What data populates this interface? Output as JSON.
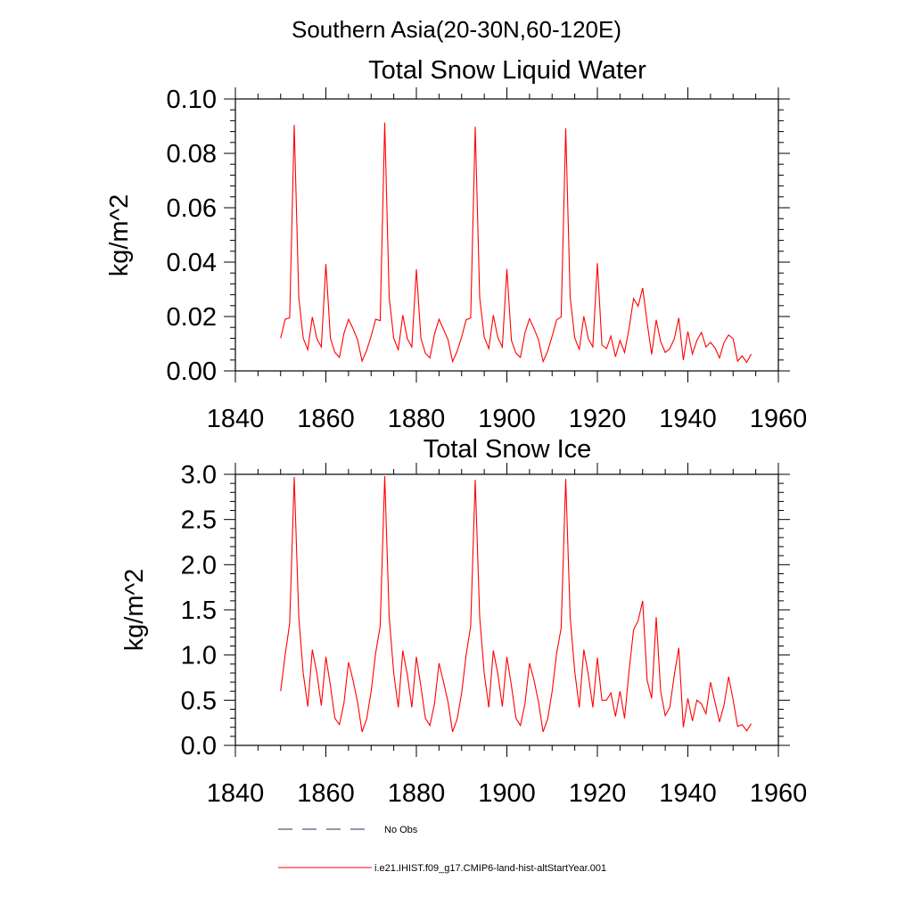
{
  "page_title": "Southern Asia(20-30N,60-120E)",
  "chart_data": [
    {
      "type": "line",
      "title": "Total Snow Liquid Water",
      "xlabel": "",
      "ylabel": "kg/m^2",
      "xlim": [
        1840,
        1960
      ],
      "ylim": [
        0,
        0.1
      ],
      "x_ticks": [
        "1840",
        "1860",
        "1880",
        "1900",
        "1920",
        "1940",
        "1960"
      ],
      "y_ticks": [
        "0.00",
        "0.02",
        "0.04",
        "0.06",
        "0.08",
        "0.10"
      ],
      "series": [
        {
          "color": "#ff0000",
          "x": [
            1850,
            1851,
            1852,
            1853,
            1854,
            1855,
            1856,
            1857,
            1858,
            1859,
            1860,
            1861,
            1862,
            1863,
            1864,
            1865,
            1866,
            1867,
            1868,
            1869,
            1870,
            1871,
            1872,
            1873,
            1874,
            1875,
            1876,
            1877,
            1878,
            1879,
            1880,
            1881,
            1882,
            1883,
            1884,
            1885,
            1886,
            1887,
            1888,
            1889,
            1890,
            1891,
            1892,
            1893,
            1894,
            1895,
            1896,
            1897,
            1898,
            1899,
            1900,
            1901,
            1902,
            1903,
            1904,
            1905,
            1906,
            1907,
            1908,
            1909,
            1910,
            1911,
            1912,
            1913,
            1914,
            1915,
            1916,
            1917,
            1918,
            1919,
            1920,
            1921,
            1922,
            1923,
            1924,
            1925,
            1926,
            1927,
            1928,
            1929,
            1930,
            1931,
            1932,
            1933,
            1934,
            1935,
            1936,
            1937,
            1938,
            1939,
            1940,
            1941,
            1942,
            1943,
            1944,
            1945,
            1946,
            1947,
            1948,
            1949,
            1950,
            1951,
            1952,
            1953,
            1954
          ],
          "y": [
            0.012,
            0.019,
            0.0195,
            0.0905,
            0.027,
            0.012,
            0.0078,
            0.0198,
            0.0118,
            0.0088,
            0.0393,
            0.012,
            0.0068,
            0.005,
            0.0138,
            0.019,
            0.0155,
            0.0115,
            0.0036,
            0.0075,
            0.0128,
            0.019,
            0.0185,
            0.0913,
            0.027,
            0.012,
            0.0078,
            0.0205,
            0.0118,
            0.0088,
            0.0373,
            0.012,
            0.0065,
            0.0048,
            0.0135,
            0.019,
            0.0152,
            0.0115,
            0.0034,
            0.0072,
            0.0125,
            0.0188,
            0.0195,
            0.0898,
            0.027,
            0.0125,
            0.0082,
            0.0205,
            0.0122,
            0.0088,
            0.0375,
            0.0112,
            0.0065,
            0.005,
            0.014,
            0.0192,
            0.0155,
            0.0115,
            0.0034,
            0.0072,
            0.0128,
            0.0188,
            0.0198,
            0.0892,
            0.027,
            0.0122,
            0.0078,
            0.0201,
            0.0118,
            0.0088,
            0.0396,
            0.0095,
            0.0082,
            0.0128,
            0.0052,
            0.0112,
            0.0068,
            0.0155,
            0.0266,
            0.0238,
            0.0305,
            0.0178,
            0.0061,
            0.0188,
            0.0108,
            0.0068,
            0.0082,
            0.0118,
            0.0195,
            0.004,
            0.0145,
            0.0062,
            0.0112,
            0.0142,
            0.0088,
            0.0105,
            0.0085,
            0.0048,
            0.0105,
            0.0132,
            0.0118,
            0.0036,
            0.0055,
            0.0031,
            0.0062
          ]
        }
      ]
    },
    {
      "type": "line",
      "title": "Total Snow Ice",
      "xlabel": "",
      "ylabel": "kg/m^2",
      "xlim": [
        1840,
        1960
      ],
      "ylim": [
        0,
        3.0
      ],
      "x_ticks": [
        "1840",
        "1860",
        "1880",
        "1900",
        "1920",
        "1940",
        "1960"
      ],
      "y_ticks": [
        "0.0",
        "0.5",
        "1.0",
        "1.5",
        "2.0",
        "2.5",
        "3.0"
      ],
      "series": [
        {
          "color": "#ff0000",
          "x": [
            1850,
            1851,
            1852,
            1853,
            1854,
            1855,
            1856,
            1857,
            1858,
            1859,
            1860,
            1861,
            1862,
            1863,
            1864,
            1865,
            1866,
            1867,
            1868,
            1869,
            1870,
            1871,
            1872,
            1873,
            1874,
            1875,
            1876,
            1877,
            1878,
            1879,
            1880,
            1881,
            1882,
            1883,
            1884,
            1885,
            1886,
            1887,
            1888,
            1889,
            1890,
            1891,
            1892,
            1893,
            1894,
            1895,
            1896,
            1897,
            1898,
            1899,
            1900,
            1901,
            1902,
            1903,
            1904,
            1905,
            1906,
            1907,
            1908,
            1909,
            1910,
            1911,
            1912,
            1913,
            1914,
            1915,
            1916,
            1917,
            1918,
            1919,
            1920,
            1921,
            1922,
            1923,
            1924,
            1925,
            1926,
            1927,
            1928,
            1929,
            1930,
            1931,
            1932,
            1933,
            1934,
            1935,
            1936,
            1937,
            1938,
            1939,
            1940,
            1941,
            1942,
            1943,
            1944,
            1945,
            1946,
            1947,
            1948,
            1949,
            1950,
            1951,
            1952,
            1953,
            1954
          ],
          "y": [
            0.6,
            1.0,
            1.35,
            2.97,
            1.42,
            0.8,
            0.43,
            1.06,
            0.8,
            0.44,
            0.98,
            0.66,
            0.3,
            0.23,
            0.47,
            0.92,
            0.72,
            0.48,
            0.15,
            0.29,
            0.6,
            1.02,
            1.32,
            2.98,
            1.42,
            0.8,
            0.42,
            1.05,
            0.78,
            0.42,
            0.98,
            0.65,
            0.3,
            0.22,
            0.46,
            0.91,
            0.7,
            0.48,
            0.15,
            0.29,
            0.58,
            1.0,
            1.32,
            2.94,
            1.42,
            0.8,
            0.42,
            1.05,
            0.79,
            0.43,
            0.98,
            0.66,
            0.3,
            0.22,
            0.46,
            0.91,
            0.72,
            0.48,
            0.15,
            0.29,
            0.6,
            1.02,
            1.3,
            2.95,
            1.42,
            0.82,
            0.42,
            1.06,
            0.78,
            0.42,
            0.97,
            0.5,
            0.5,
            0.58,
            0.32,
            0.6,
            0.3,
            0.82,
            1.28,
            1.38,
            1.6,
            0.72,
            0.52,
            1.42,
            0.6,
            0.33,
            0.42,
            0.78,
            1.08,
            0.2,
            0.52,
            0.27,
            0.5,
            0.46,
            0.35,
            0.7,
            0.48,
            0.26,
            0.45,
            0.76,
            0.5,
            0.21,
            0.23,
            0.16,
            0.24
          ]
        }
      ]
    }
  ],
  "legend": [
    {
      "label": "No Obs",
      "style": "dashed",
      "color": "#2a2a5a"
    },
    {
      "label": "i.e21.IHIST.f09_g17.CMIP6-land-hist-altStartYear.001",
      "style": "solid",
      "color": "#ff0000"
    }
  ]
}
